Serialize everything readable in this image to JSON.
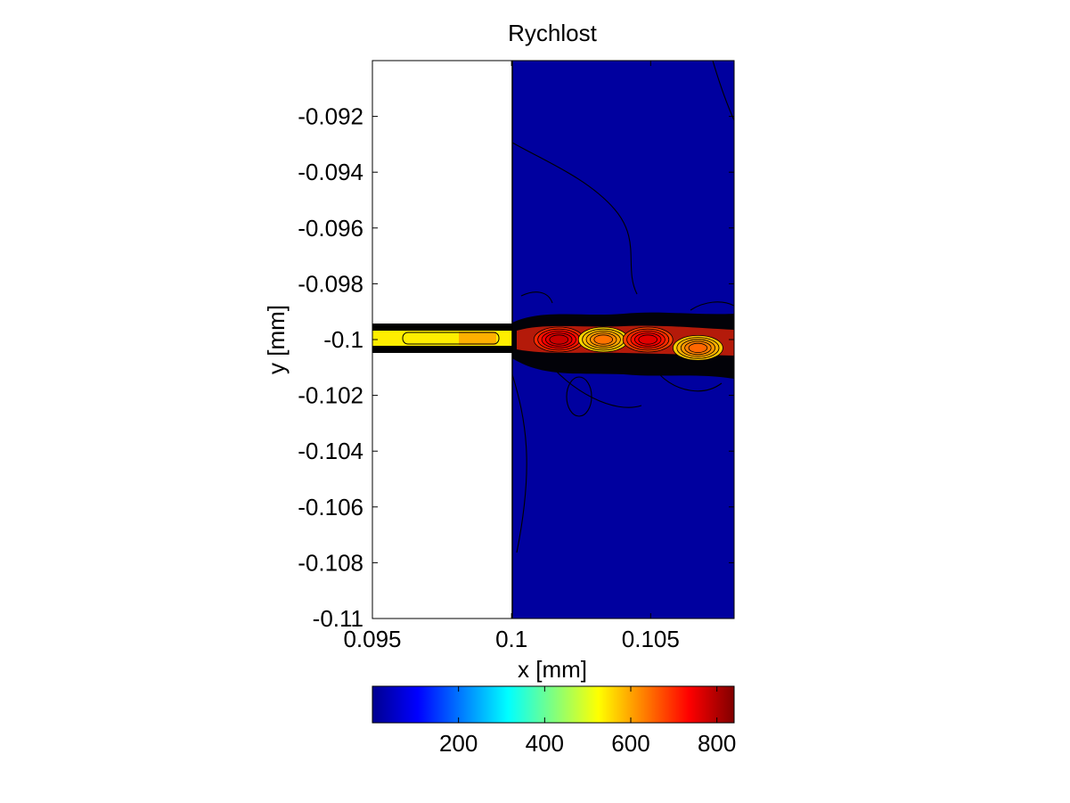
{
  "chart_data": {
    "type": "contour",
    "title": "Rychlost",
    "xlabel": "x [mm]",
    "ylabel": "y [mm]",
    "xlim": [
      0.095,
      0.108
    ],
    "ylim": [
      -0.11,
      -0.09
    ],
    "x_ticks": [
      0.095,
      0.1,
      0.105
    ],
    "x_tick_labels": [
      "0.095",
      "0.1",
      "0.105"
    ],
    "y_ticks": [
      -0.092,
      -0.094,
      -0.096,
      -0.098,
      -0.1,
      -0.102,
      -0.104,
      -0.106,
      -0.108,
      -0.11
    ],
    "y_tick_labels": [
      "-0.092",
      "-0.094",
      "-0.096",
      "-0.098",
      "-0.1",
      "-0.102",
      "-0.104",
      "-0.106",
      "-0.108",
      "-0.11"
    ],
    "colorbar": {
      "colormap": "jet",
      "range": [
        0,
        840
      ],
      "ticks": [
        200,
        400,
        600,
        800
      ],
      "tick_labels": [
        "200",
        "400",
        "600",
        "800"
      ],
      "placement": "below"
    },
    "regions": [
      {
        "name": "no-data",
        "x_range": [
          0.095,
          0.1
        ],
        "y_range": [
          -0.11,
          -0.09
        ]
      },
      {
        "name": "background-flow",
        "x_range": [
          0.1,
          0.108
        ],
        "y_range": [
          -0.11,
          -0.09
        ],
        "value": 15
      }
    ],
    "inlet_channel": {
      "x_range": [
        0.095,
        0.1
      ],
      "y_center": -0.1,
      "half_width": 0.0003,
      "wall_width": 0.0002,
      "value": 520
    },
    "jet": {
      "x_range": [
        0.1,
        0.108
      ],
      "y_center": -0.1,
      "half_width": 0.0005,
      "value_range": [
        560,
        780
      ]
    },
    "peaks": [
      {
        "x": 0.1017,
        "y": -0.1,
        "value": 780
      },
      {
        "x": 0.1033,
        "y": -0.1,
        "value": 640
      },
      {
        "x": 0.1049,
        "y": -0.1,
        "value": 760
      },
      {
        "x": 0.1067,
        "y": -0.1003,
        "value": 650
      }
    ],
    "contour_lines": true,
    "grid": false,
    "colors": {
      "background": "#00009F",
      "jet_core": "#C81E00",
      "inlet": "#FFF200",
      "axes": "#000000"
    }
  }
}
